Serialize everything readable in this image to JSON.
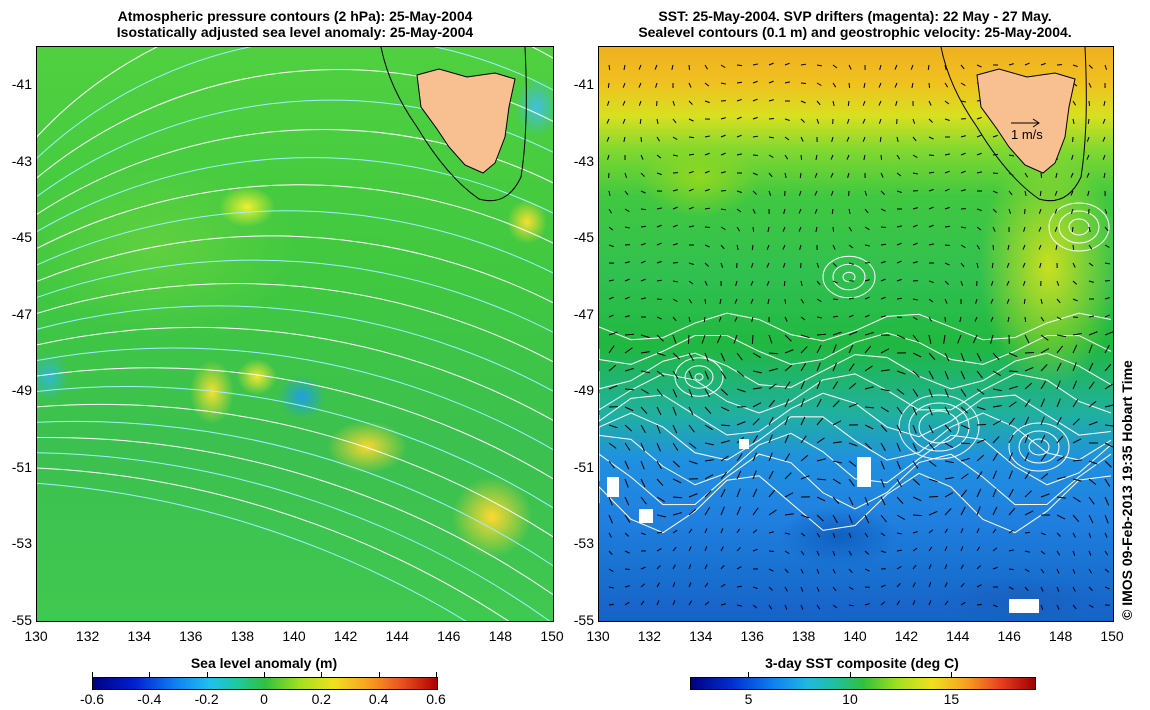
{
  "left_panel": {
    "title_line1": "Atmospheric pressure contours (2 hPa): 25-May-2004",
    "title_line2": "Isostatically adjusted sea level anomaly: 25-May-2004",
    "y_ticks": [
      "-41",
      "-43",
      "-45",
      "-47",
      "-49",
      "-51",
      "-53",
      "-55"
    ],
    "x_ticks": [
      "130",
      "132",
      "134",
      "136",
      "138",
      "140",
      "142",
      "144",
      "146",
      "148",
      "150"
    ],
    "colorbar_title": "Sea level anomaly (m)",
    "colorbar_ticks": [
      "-0.6",
      "-0.4",
      "-0.2",
      "0",
      "0.2",
      "0.4",
      "0.6"
    ]
  },
  "right_panel": {
    "title_line1": "SST: 25-May-2004. SVP drifters (magenta): 22 May - 27 May.",
    "title_line2": "Sealevel contours (0.1 m) and geostrophic velocity: 25-May-2004.",
    "y_ticks": [
      "-41",
      "-43",
      "-45",
      "-47",
      "-49",
      "-51",
      "-53",
      "-55"
    ],
    "x_ticks": [
      "130",
      "132",
      "134",
      "136",
      "138",
      "140",
      "142",
      "144",
      "146",
      "148",
      "150"
    ],
    "velocity_scale_label": "1 m/s",
    "colorbar_title": "3-day SST composite (deg C)",
    "colorbar_ticks": [
      "5",
      "10",
      "15"
    ]
  },
  "copyright": "© IMOS 09-Feb-2013 19:35 Hobart Time",
  "colors": {
    "land": "#f8c090",
    "contour_white": "#ffffff",
    "contour_cyan": "#a0f0ff"
  }
}
